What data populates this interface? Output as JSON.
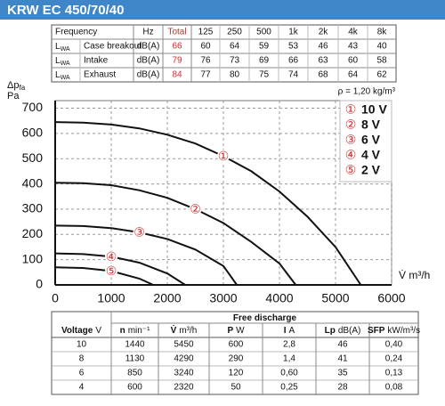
{
  "header": {
    "title": "KRW EC 450/70/40"
  },
  "sound_table": {
    "headers": [
      "Frequency",
      "Hz",
      "Total",
      "125",
      "250",
      "500",
      "1k",
      "2k",
      "4k",
      "8k"
    ],
    "rows": [
      {
        "symbol": "L",
        "subscript": "WA",
        "label": "Case breakout",
        "unit": "dB(A)",
        "total": 66,
        "values": [
          60,
          64,
          59,
          53,
          46,
          43,
          40
        ]
      },
      {
        "symbol": "L",
        "subscript": "WA",
        "label": "Intake",
        "unit": "dB(A)",
        "total": 79,
        "values": [
          76,
          73,
          69,
          66,
          63,
          60,
          58
        ]
      },
      {
        "symbol": "L",
        "subscript": "WA",
        "label": "Exhaust",
        "unit": "dB(A)",
        "total": 84,
        "values": [
          77,
          80,
          75,
          74,
          68,
          64,
          62
        ]
      }
    ]
  },
  "chart_data": {
    "type": "line",
    "y_label": "Δp",
    "y_label_sub": "fa",
    "y_unit": "Pa",
    "x_label": "V̇ m³/h",
    "note": "ρ = 1,20 kg/m³",
    "xlim": [
      0,
      6000
    ],
    "xticks": [
      0,
      1000,
      2000,
      3000,
      4000,
      5000,
      6000
    ],
    "ylim": [
      0,
      730
    ],
    "yticks": [
      0,
      100,
      200,
      300,
      400,
      500,
      600,
      700
    ],
    "grid": true,
    "legend": "upper right",
    "series": [
      {
        "name": "10 V",
        "marker": "①",
        "color": "#111111",
        "x": [
          0,
          500,
          1000,
          1500,
          2000,
          2500,
          3000,
          3500,
          4000,
          4500,
          5000,
          5450
        ],
        "values": [
          645,
          643,
          635,
          620,
          595,
          560,
          510,
          450,
          370,
          270,
          150,
          0
        ]
      },
      {
        "name": "8 V",
        "marker": "②",
        "color": "#111111",
        "x": [
          0,
          500,
          1000,
          1500,
          2000,
          2500,
          3000,
          3500,
          4000,
          4290
        ],
        "values": [
          405,
          403,
          395,
          375,
          345,
          300,
          245,
          170,
          85,
          0
        ]
      },
      {
        "name": "6 V",
        "marker": "③",
        "color": "#111111",
        "x": [
          0,
          500,
          1000,
          1500,
          2000,
          2500,
          3000,
          3240
        ],
        "values": [
          235,
          233,
          225,
          208,
          182,
          140,
          75,
          0
        ]
      },
      {
        "name": "4 V",
        "marker": "④",
        "color": "#111111",
        "x": [
          0,
          500,
          1000,
          1500,
          2000,
          2320
        ],
        "values": [
          125,
          122,
          112,
          88,
          45,
          0
        ]
      },
      {
        "name": "2 V",
        "marker": "⑤",
        "color": "#111111",
        "x": [
          0,
          500,
          1000,
          1500,
          1750
        ],
        "values": [
          70,
          67,
          55,
          25,
          0
        ]
      }
    ]
  },
  "performance_table": {
    "caption": "Free discharge",
    "columns": [
      {
        "name": "Voltage",
        "unit": "V"
      },
      {
        "name": "n",
        "unit": "min⁻¹"
      },
      {
        "name": "V̇",
        "unit": "m³/h"
      },
      {
        "name": "P",
        "unit": "W"
      },
      {
        "name": "I",
        "unit": "A"
      },
      {
        "name": "Lp",
        "unit": "dB(A)"
      },
      {
        "name": "SFP",
        "unit": "kW/m³/s"
      }
    ],
    "rows": [
      [
        10,
        1440,
        5450,
        600,
        "2,8",
        46,
        "0,40"
      ],
      [
        8,
        1130,
        4290,
        290,
        "1,4",
        41,
        "0,24"
      ],
      [
        6,
        850,
        3240,
        120,
        "0,60",
        35,
        "0,13"
      ],
      [
        4,
        600,
        2320,
        50,
        "0,25",
        28,
        "0,08"
      ]
    ]
  }
}
